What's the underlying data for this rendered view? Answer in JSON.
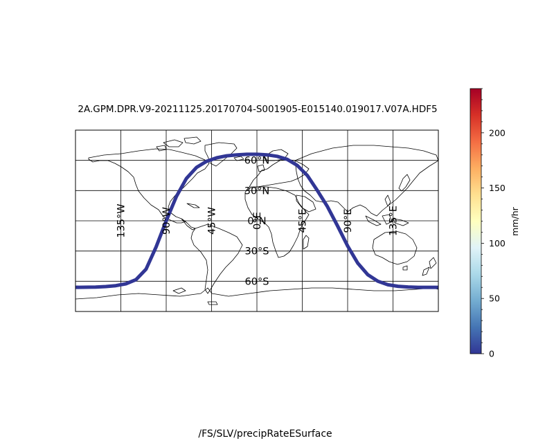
{
  "title": "2A.GPM.DPR.V9-20211125.20170704-S001905-E015140.019017.V07A.HDF5",
  "footer": "/FS/SLV/precipRateESurface",
  "map": {
    "projection": "plate-carree",
    "lon_range": [
      -180,
      180
    ],
    "lat_range": [
      -90,
      90
    ],
    "meridians": [
      -135,
      -90,
      -45,
      0,
      45,
      90,
      135
    ],
    "parallels": [
      -60,
      -30,
      0,
      30,
      60
    ],
    "meridian_labels": [
      "135°W",
      "90°W",
      "45°W",
      "0°E",
      "45°E",
      "90°E",
      "135°E"
    ],
    "parallel_labels": [
      "60°S",
      "30°S",
      "0°N",
      "30°N",
      "60°N"
    ],
    "track_color": "#313695",
    "track": [
      [
        -178,
        -66
      ],
      [
        -160,
        -65.8
      ],
      [
        -150,
        -65.3
      ],
      [
        -140,
        -64.4
      ],
      [
        -130,
        -62.5
      ],
      [
        -120,
        -58.5
      ],
      [
        -110,
        -48
      ],
      [
        -100,
        -26
      ],
      [
        -90,
        0
      ],
      [
        -80,
        24
      ],
      [
        -70,
        42
      ],
      [
        -60,
        53
      ],
      [
        -50,
        59
      ],
      [
        -40,
        62.5
      ],
      [
        -30,
        64.5
      ],
      [
        -20,
        65.5
      ],
      [
        -10,
        66
      ],
      [
        0,
        66
      ],
      [
        10,
        65.5
      ],
      [
        20,
        64
      ],
      [
        30,
        61
      ],
      [
        40,
        55
      ],
      [
        50,
        45
      ],
      [
        60,
        30
      ],
      [
        70,
        14
      ],
      [
        80,
        -5
      ],
      [
        90,
        -25
      ],
      [
        100,
        -42
      ],
      [
        110,
        -53.5
      ],
      [
        120,
        -60
      ],
      [
        130,
        -63.5
      ],
      [
        140,
        -65
      ],
      [
        150,
        -65.7
      ],
      [
        160,
        -66
      ],
      [
        180,
        -66
      ]
    ],
    "track_stray_point": [
      -180,
      -66
    ]
  },
  "colorbar": {
    "label": "mm/hr",
    "min": 0,
    "max": 240,
    "ticks": [
      0,
      50,
      100,
      150,
      200
    ],
    "colors": [
      "#313695",
      "#4575b4",
      "#74add1",
      "#abd9e9",
      "#e0f3f8",
      "#ffffbf",
      "#fee090",
      "#fdae61",
      "#f46d43",
      "#d73027",
      "#a50026"
    ]
  }
}
